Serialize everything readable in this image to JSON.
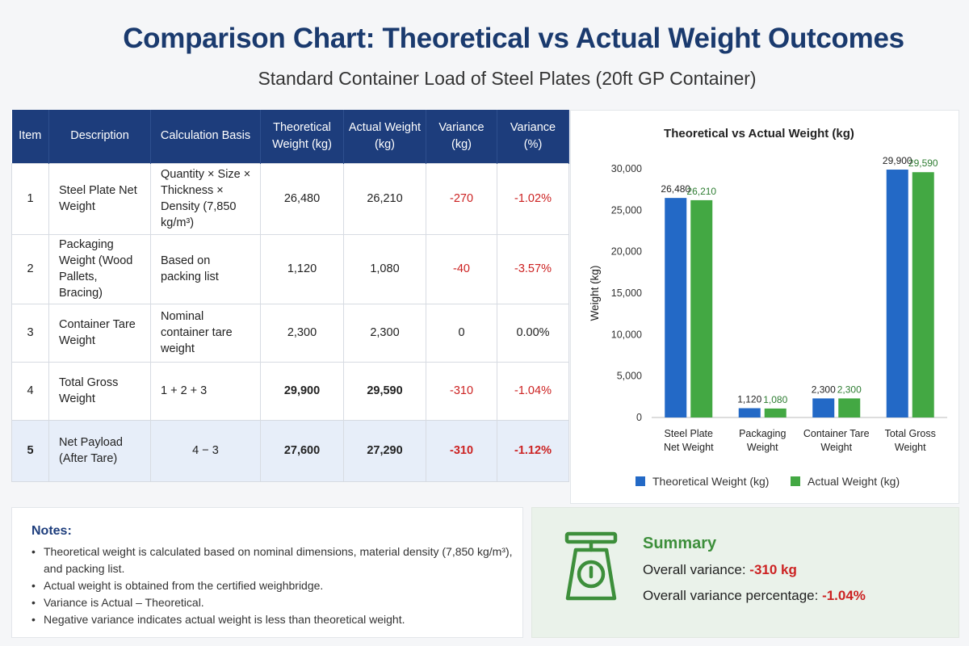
{
  "title": "Comparison Chart: Theoretical vs Actual Weight Outcomes",
  "subtitle": "Standard Container Load of Steel Plates (20ft GP Container)",
  "table": {
    "headers": [
      "Item",
      "Description",
      "Calculation Basis",
      "Theoretical Weight (kg)",
      "Actual Weight (kg)",
      "Variance (kg)",
      "Variance (%)"
    ],
    "rows": [
      {
        "item": "1",
        "description": "Steel Plate Net Weight",
        "basis": "Quantity × Size × Thickness × Density (7,850 kg/m³)",
        "theoretical": "26,480",
        "actual": "26,210",
        "variance_kg": "-270",
        "variance_pct": "-1.02%"
      },
      {
        "item": "2",
        "description": "Packaging Weight (Wood Pallets, Bracing)",
        "basis": "Based on packing list",
        "theoretical": "1,120",
        "actual": "1,080",
        "variance_kg": "-40",
        "variance_pct": "-3.57%"
      },
      {
        "item": "3",
        "description": "Container Tare Weight",
        "basis": "Nominal container tare weight",
        "theoretical": "2,300",
        "actual": "2,300",
        "variance_kg": "0",
        "variance_pct": "0.00%"
      },
      {
        "item": "4",
        "description": "Total Gross Weight",
        "basis": "1 + 2 + 3",
        "theoretical": "29,900",
        "actual": "29,590",
        "variance_kg": "-310",
        "variance_pct": "-1.04%"
      },
      {
        "item": "5",
        "description": "Net Payload (After Tare)",
        "basis": "4 − 3",
        "theoretical": "27,600",
        "actual": "27,290",
        "variance_kg": "-310",
        "variance_pct": "-1.12%"
      }
    ]
  },
  "chart_data": {
    "type": "bar",
    "title": "Theoretical vs Actual Weight (kg)",
    "xlabel": "",
    "ylabel": "Weight (kg)",
    "ylim": [
      0,
      30000
    ],
    "yticks": [
      0,
      5000,
      10000,
      15000,
      20000,
      25000,
      30000
    ],
    "ytick_labels": [
      "0",
      "5,000",
      "10,000",
      "15,000",
      "20,000",
      "25,000",
      "30,000"
    ],
    "categories": [
      [
        "Steel Plate",
        "Net Weight"
      ],
      [
        "Packaging",
        "Weight"
      ],
      [
        "Container Tare",
        "Weight"
      ],
      [
        "Total Gross",
        "Weight"
      ]
    ],
    "series": [
      {
        "name": "Theoretical Weight (kg)",
        "color": "#2369c6",
        "label_color": "#222222",
        "values": [
          26480,
          1120,
          2300,
          29900
        ],
        "labels": [
          "26,480",
          "1,120",
          "2,300",
          "29,900"
        ]
      },
      {
        "name": "Actual Weight (kg)",
        "color": "#43a843",
        "label_color": "#2e7d32",
        "values": [
          26210,
          1080,
          2300,
          29590
        ],
        "labels": [
          "26,210",
          "1,080",
          "2,300",
          "29,590"
        ]
      }
    ],
    "grid": false,
    "legend": "bottom"
  },
  "notes": {
    "title": "Notes:",
    "items": [
      "Theoretical weight is calculated based on nominal dimensions, material density (7,850 kg/m³), and packing list.",
      "Actual weight is obtained from the certified weighbridge.",
      "Variance is Actual – Theoretical.",
      "Negative variance indicates actual weight is less than theoretical weight."
    ]
  },
  "summary": {
    "title": "Summary",
    "variance_label": "Overall variance: ",
    "variance_value": "-310 kg",
    "pct_label": "Overall variance percentage: ",
    "pct_value": "-1.04%",
    "icon": "scale-icon",
    "accent_color": "#3d8f3b"
  }
}
